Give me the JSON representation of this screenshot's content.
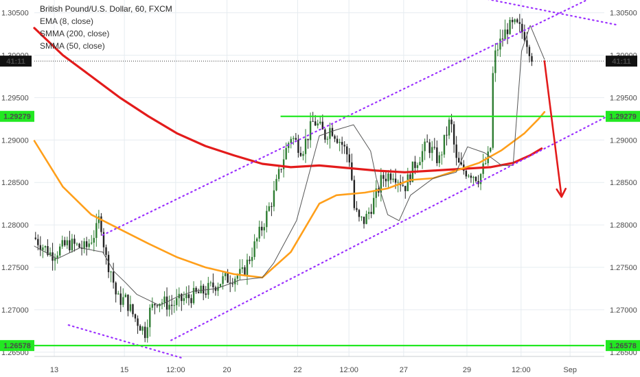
{
  "legend": {
    "title": "British Pound/U.S. Dollar, 60, FXCM",
    "indicators": [
      "EMA (8, close)",
      "SMMA (200, close)",
      "SMMA (50, close)"
    ]
  },
  "price_badges": {
    "current_left": "41:11",
    "current_right": "41:11",
    "resistance_left": "1.29279",
    "resistance_right": "1.29279",
    "support_left": "1.26578",
    "support_right": "1.26578"
  },
  "colors": {
    "up": "#26a69a",
    "down": "#222222",
    "candle_body_up": "#2e7d32",
    "smma200": "#e31b1b",
    "smma50": "#ff9f1a",
    "ema8": "#555555",
    "hline": "#22e822",
    "channel": "#9b30ff",
    "arrow": "#e31b1b",
    "grid": "#e6ecf0"
  },
  "chart_data": {
    "type": "candlestick",
    "title": "British Pound/U.S. Dollar, 60, FXCM",
    "symbol": "GBP/USD",
    "timeframe": "60",
    "ylim": [
      1.2645,
      1.3065
    ],
    "y_ticks": [
      "1.30500",
      "1.30000",
      "1.29500",
      "1.29000",
      "1.28500",
      "1.28000",
      "1.27500",
      "1.27000",
      "1.26500"
    ],
    "x_ticks": [
      "13",
      "15",
      "12:00",
      "20",
      "22",
      "12:00",
      "27",
      "29",
      "12:00",
      "Sep"
    ],
    "grid": true,
    "horizontal_lines": [
      {
        "label": "1.29279",
        "value": 1.29279
      },
      {
        "label": "1.26578",
        "value": 1.26578
      }
    ],
    "current_price": 1.2993,
    "series": [
      {
        "name": "SMMA (200, close)",
        "points": [
          [
            0,
            1.3032
          ],
          [
            0.05,
            1.3
          ],
          [
            0.1,
            1.2975
          ],
          [
            0.15,
            1.295
          ],
          [
            0.2,
            1.2928
          ],
          [
            0.25,
            1.2908
          ],
          [
            0.3,
            1.2893
          ],
          [
            0.35,
            1.2882
          ],
          [
            0.4,
            1.2872
          ],
          [
            0.45,
            1.2868
          ],
          [
            0.5,
            1.287
          ],
          [
            0.55,
            1.2867
          ],
          [
            0.6,
            1.2864
          ],
          [
            0.65,
            1.2862
          ],
          [
            0.7,
            1.2864
          ],
          [
            0.75,
            1.2866
          ],
          [
            0.8,
            1.2868
          ],
          [
            0.84,
            1.2873
          ],
          [
            0.87,
            1.2882
          ],
          [
            0.89,
            1.289
          ]
        ]
      },
      {
        "name": "SMMA (50, close)",
        "points": [
          [
            0,
            1.2899
          ],
          [
            0.05,
            1.2845
          ],
          [
            0.1,
            1.2812
          ],
          [
            0.15,
            1.2795
          ],
          [
            0.2,
            1.2778
          ],
          [
            0.25,
            1.2762
          ],
          [
            0.3,
            1.275
          ],
          [
            0.35,
            1.2742
          ],
          [
            0.4,
            1.2738
          ],
          [
            0.45,
            1.2768
          ],
          [
            0.5,
            1.2825
          ],
          [
            0.53,
            1.2835
          ],
          [
            0.58,
            1.2838
          ],
          [
            0.62,
            1.2843
          ],
          [
            0.66,
            1.2853
          ],
          [
            0.7,
            1.2855
          ],
          [
            0.74,
            1.2864
          ],
          [
            0.78,
            1.2873
          ],
          [
            0.82,
            1.2888
          ],
          [
            0.86,
            1.2908
          ],
          [
            0.885,
            1.2925
          ],
          [
            0.895,
            1.2933
          ]
        ]
      },
      {
        "name": "EMA (8, close)",
        "points": [
          [
            0,
            1.2775
          ],
          [
            0.04,
            1.276
          ],
          [
            0.08,
            1.2773
          ],
          [
            0.12,
            1.2768
          ],
          [
            0.14,
            1.2745
          ],
          [
            0.16,
            1.2732
          ],
          [
            0.18,
            1.2718
          ],
          [
            0.22,
            1.2705
          ],
          [
            0.25,
            1.2715
          ],
          [
            0.28,
            1.2722
          ],
          [
            0.32,
            1.2725
          ],
          [
            0.36,
            1.2735
          ],
          [
            0.4,
            1.2738
          ],
          [
            0.42,
            1.2755
          ],
          [
            0.44,
            1.278
          ],
          [
            0.46,
            1.2805
          ],
          [
            0.48,
            1.2855
          ],
          [
            0.5,
            1.2905
          ],
          [
            0.53,
            1.2912
          ],
          [
            0.56,
            1.2918
          ],
          [
            0.59,
            1.2887
          ],
          [
            0.6,
            1.2855
          ],
          [
            0.62,
            1.2812
          ],
          [
            0.64,
            1.2805
          ],
          [
            0.66,
            1.2835
          ],
          [
            0.7,
            1.2855
          ],
          [
            0.74,
            1.2862
          ],
          [
            0.76,
            1.2892
          ],
          [
            0.79,
            1.2885
          ],
          [
            0.82,
            1.287
          ],
          [
            0.84,
            1.287
          ],
          [
            0.855,
            1.3005
          ],
          [
            0.87,
            1.3035
          ],
          [
            0.895,
            1.2995
          ]
        ]
      }
    ],
    "trendlines": [
      {
        "name": "channel-upper",
        "from": [
          0.12,
          1.2788
        ],
        "to": [
          1.0,
          1.3075
        ]
      },
      {
        "name": "channel-lower",
        "from": [
          0.24,
          1.2664
        ],
        "to": [
          1.02,
          1.2933
        ]
      },
      {
        "name": "wedge-top",
        "from": [
          0.78,
          1.3068
        ],
        "to": [
          1.02,
          1.3036
        ]
      },
      {
        "name": "wedge-bottom",
        "from": [
          0.06,
          1.2682
        ],
        "to": [
          0.26,
          1.2643
        ]
      }
    ],
    "forecast_arrow": {
      "from": [
        0.895,
        1.2993
      ],
      "to": [
        0.925,
        1.2833
      ]
    }
  }
}
